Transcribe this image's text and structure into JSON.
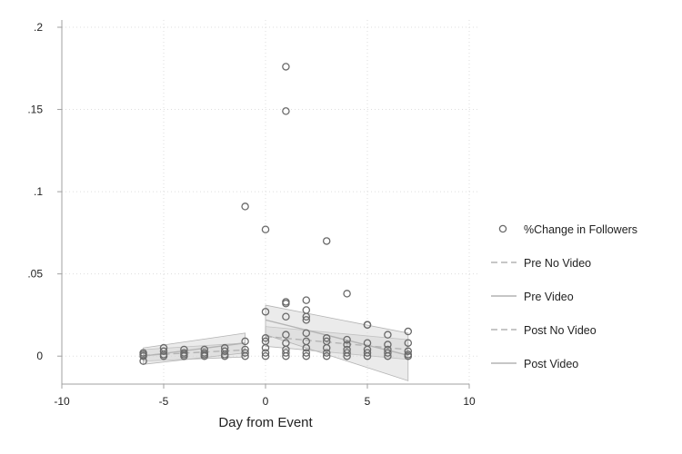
{
  "chart_data": {
    "type": "scatter",
    "title": "",
    "xlabel": "Day from Event",
    "ylabel": "",
    "xlim": [
      -10,
      10
    ],
    "ylim": [
      -0.017,
      0.2
    ],
    "x_ticks": [
      -10,
      -5,
      0,
      5,
      10
    ],
    "x_tick_labels": [
      "-10",
      "-5",
      "0",
      "5",
      "10"
    ],
    "y_ticks": [
      0,
      0.05,
      0.1,
      0.15,
      0.2
    ],
    "y_tick_labels": [
      "0",
      ".05",
      ".1",
      ".15",
      ".2"
    ],
    "grid": true,
    "legend_position": "right",
    "legend": [
      "%Change in Followers",
      "Pre No Video",
      "Pre Video",
      "Post No Video",
      "Post Video"
    ],
    "scatter_points": [
      [
        -6,
        -0.003
      ],
      [
        -6,
        0
      ],
      [
        -6,
        0.001
      ],
      [
        -6,
        0.002
      ],
      [
        -5,
        0
      ],
      [
        -5,
        0.001
      ],
      [
        -5,
        0.003
      ],
      [
        -5,
        0.005
      ],
      [
        -4,
        0
      ],
      [
        -4,
        0.001
      ],
      [
        -4,
        0.002
      ],
      [
        -4,
        0.004
      ],
      [
        -3,
        0
      ],
      [
        -3,
        0.001
      ],
      [
        -3,
        0.002
      ],
      [
        -3,
        0.004
      ],
      [
        -2,
        0
      ],
      [
        -2,
        0.001
      ],
      [
        -2,
        0.003
      ],
      [
        -2,
        0.005
      ],
      [
        -1,
        0
      ],
      [
        -1,
        0.002
      ],
      [
        -1,
        0.004
      ],
      [
        -1,
        0.009
      ],
      [
        -1,
        0.091
      ],
      [
        0,
        0
      ],
      [
        0,
        0.002
      ],
      [
        0,
        0.005
      ],
      [
        0,
        0.009
      ],
      [
        0,
        0.011
      ],
      [
        0,
        0.027
      ],
      [
        0,
        0.077
      ],
      [
        1,
        0
      ],
      [
        1,
        0.002
      ],
      [
        1,
        0.004
      ],
      [
        1,
        0.008
      ],
      [
        1,
        0.013
      ],
      [
        1,
        0.024
      ],
      [
        1,
        0.032
      ],
      [
        1,
        0.033
      ],
      [
        1,
        0.149
      ],
      [
        1,
        0.176
      ],
      [
        2,
        0
      ],
      [
        2,
        0.002
      ],
      [
        2,
        0.005
      ],
      [
        2,
        0.009
      ],
      [
        2,
        0.014
      ],
      [
        2,
        0.022
      ],
      [
        2,
        0.024
      ],
      [
        2,
        0.028
      ],
      [
        2,
        0.034
      ],
      [
        3,
        0
      ],
      [
        3,
        0.002
      ],
      [
        3,
        0.005
      ],
      [
        3,
        0.009
      ],
      [
        3,
        0.011
      ],
      [
        3,
        0.07
      ],
      [
        4,
        0
      ],
      [
        4,
        0.002
      ],
      [
        4,
        0.004
      ],
      [
        4,
        0.007
      ],
      [
        4,
        0.01
      ],
      [
        4,
        0.038
      ],
      [
        5,
        0
      ],
      [
        5,
        0.002
      ],
      [
        5,
        0.004
      ],
      [
        5,
        0.008
      ],
      [
        5,
        0.019
      ],
      [
        5,
        0.019
      ],
      [
        6,
        0
      ],
      [
        6,
        0.002
      ],
      [
        6,
        0.004
      ],
      [
        6,
        0.007
      ],
      [
        6,
        0.013
      ],
      [
        7,
        0
      ],
      [
        7,
        0.001
      ],
      [
        7,
        0.003
      ],
      [
        7,
        0.008
      ],
      [
        7,
        0.015
      ]
    ],
    "fit_lines": [
      {
        "name": "Pre No Video",
        "style": "dashed",
        "x": [
          -6,
          -1
        ],
        "y": [
          0.0005,
          0.0038
        ],
        "ci_low": [
          -0.003,
          -0.0005
        ],
        "ci_high": [
          0.004,
          0.008
        ]
      },
      {
        "name": "Pre Video",
        "style": "solid",
        "x": [
          -6,
          -1
        ],
        "y": [
          0.0,
          0.008
        ],
        "ci_low": [
          -0.005,
          0.002
        ],
        "ci_high": [
          0.005,
          0.014
        ]
      },
      {
        "name": "Post No Video",
        "style": "dashed",
        "x": [
          0,
          7
        ],
        "y": [
          0.012,
          0.004
        ],
        "ci_low": [
          0.006,
          -0.002
        ],
        "ci_high": [
          0.018,
          0.01
        ]
      },
      {
        "name": "Post Video",
        "style": "solid",
        "x": [
          0,
          7
        ],
        "y": [
          0.022,
          0.0005
        ],
        "ci_low": [
          0.013,
          -0.015
        ],
        "ci_high": [
          0.031,
          0.014
        ]
      }
    ]
  },
  "colors": {
    "marker": "#6a6a6a",
    "line": "#b4b4b4",
    "band": "#d3d3d3",
    "axis": "#a0a0a0",
    "grid": "#dddddd"
  }
}
